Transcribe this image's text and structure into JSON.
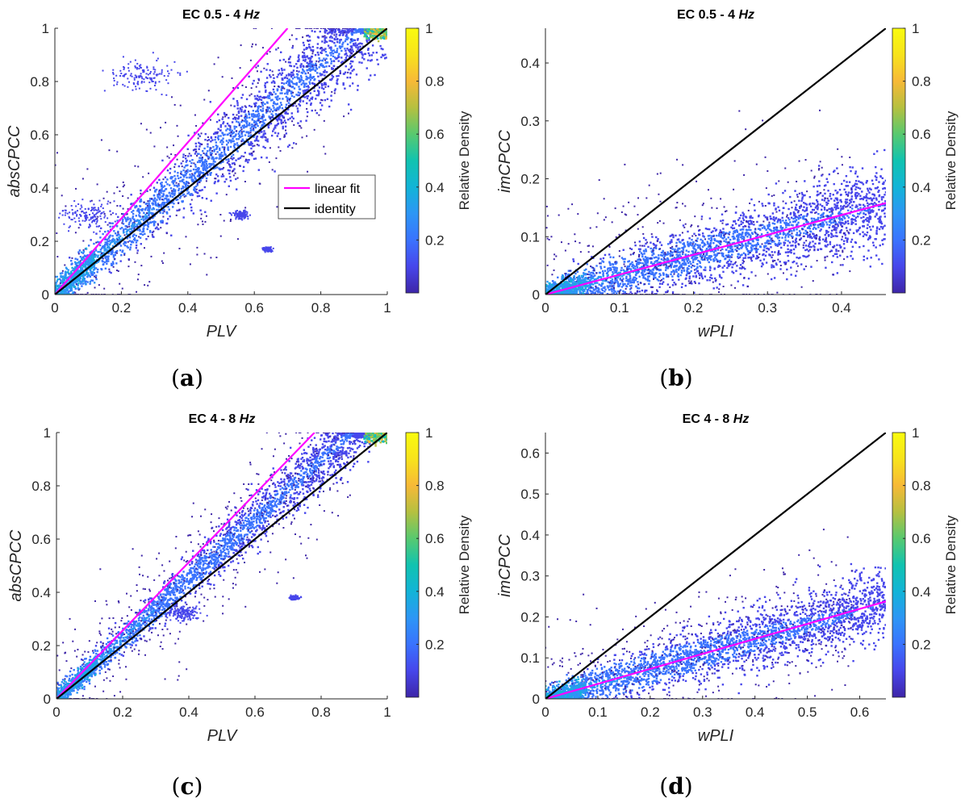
{
  "colors": {
    "linear_fit": "#ff00ff",
    "identity": "#000000",
    "colormap": [
      "#3e26a8",
      "#4746eb",
      "#3a73fe",
      "#2d96f5",
      "#12b4d7",
      "#11c3b0",
      "#58c96f",
      "#b5c040",
      "#f7b937",
      "#f7e31c",
      "#f9fb0e"
    ]
  },
  "colorbar": {
    "label": "Relative Density",
    "ticks": [
      "0.2",
      "0.4",
      "0.6",
      "0.8",
      "1"
    ]
  },
  "legend": {
    "linear_fit": "linear fit",
    "identity": "identity"
  },
  "panels": [
    {
      "caption": "a",
      "title": "EC 0.5 - 4",
      "title_unit": "Hz",
      "xlabel": "PLV",
      "ylabel": "absCPCC",
      "xticks": [
        "0",
        "0.2",
        "0.4",
        "0.6",
        "0.8",
        "1"
      ],
      "yticks": [
        "0",
        "0.2",
        "0.4",
        "0.6",
        "0.8",
        "1"
      ]
    },
    {
      "caption": "b",
      "title": "EC 0.5 - 4",
      "title_unit": "Hz",
      "xlabel": "wPLI",
      "ylabel": "imCPCC",
      "xticks": [
        "0",
        "0.1",
        "0.2",
        "0.3",
        "0.4"
      ],
      "yticks": [
        "0",
        "0.1",
        "0.2",
        "0.3",
        "0.4"
      ]
    },
    {
      "caption": "c",
      "title": "EC 4 - 8",
      "title_unit": "Hz",
      "xlabel": "PLV",
      "ylabel": "absCPCC",
      "xticks": [
        "0",
        "0.2",
        "0.4",
        "0.6",
        "0.8",
        "1"
      ],
      "yticks": [
        "0",
        "0.2",
        "0.4",
        "0.6",
        "0.8",
        "1"
      ]
    },
    {
      "caption": "d",
      "title": "EC 4 - 8",
      "title_unit": "Hz",
      "xlabel": "wPLI",
      "ylabel": "imCPCC",
      "xticks": [
        "0",
        "0.1",
        "0.2",
        "0.3",
        "0.4",
        "0.5",
        "0.6"
      ],
      "yticks": [
        "0",
        "0.1",
        "0.2",
        "0.3",
        "0.4",
        "0.5",
        "0.6"
      ]
    }
  ],
  "chart_data": [
    {
      "type": "scatter",
      "title": "EC 0.5 - 4 Hz",
      "xlabel": "PLV",
      "ylabel": "absCPCC",
      "xlim": [
        0,
        1
      ],
      "ylim": [
        0,
        1
      ],
      "color_scale": "Relative Density",
      "color_range": [
        0,
        1
      ],
      "legend": [
        "linear fit",
        "identity"
      ],
      "legend_position": "center-right",
      "series": [
        {
          "name": "linear fit",
          "kind": "line",
          "x": [
            0,
            0.7
          ],
          "y": [
            0,
            1.0
          ]
        },
        {
          "name": "identity",
          "kind": "line",
          "x": [
            0,
            1
          ],
          "y": [
            0,
            1
          ]
        },
        {
          "kind": "density-scatter",
          "trend_slope": 1.08,
          "spread": 0.06,
          "x_range": [
            0,
            1
          ],
          "clusters": [
            {
              "x": 0.26,
              "y": 0.82,
              "r": 0.08
            },
            {
              "x": 0.1,
              "y": 0.3,
              "r": 0.07
            },
            {
              "x": 0.56,
              "y": 0.3,
              "r": 0.02
            },
            {
              "x": 0.64,
              "y": 0.17,
              "r": 0.01
            }
          ]
        }
      ]
    },
    {
      "type": "scatter",
      "title": "EC 0.5 - 4 Hz",
      "xlabel": "wPLI",
      "ylabel": "imCPCC",
      "xlim": [
        0,
        0.46
      ],
      "ylim": [
        0,
        0.46
      ],
      "color_scale": "Relative Density",
      "color_range": [
        0,
        1
      ],
      "series": [
        {
          "name": "linear fit",
          "kind": "line",
          "x": [
            0,
            0.46
          ],
          "y": [
            0,
            0.158
          ]
        },
        {
          "name": "identity",
          "kind": "line",
          "x": [
            0,
            0.46
          ],
          "y": [
            0,
            0.46
          ]
        },
        {
          "kind": "density-scatter",
          "trend_slope": 0.34,
          "spread": 0.025,
          "x_range": [
            0,
            0.46
          ]
        }
      ]
    },
    {
      "type": "scatter",
      "title": "EC 4 - 8 Hz",
      "xlabel": "PLV",
      "ylabel": "absCPCC",
      "xlim": [
        0,
        1
      ],
      "ylim": [
        0,
        1
      ],
      "color_scale": "Relative Density",
      "color_range": [
        0,
        1
      ],
      "series": [
        {
          "name": "linear fit",
          "kind": "line",
          "x": [
            0,
            0.78
          ],
          "y": [
            0,
            1.0
          ]
        },
        {
          "name": "identity",
          "kind": "line",
          "x": [
            0,
            1
          ],
          "y": [
            0,
            1
          ]
        },
        {
          "kind": "density-scatter",
          "trend_slope": 1.12,
          "spread": 0.04,
          "x_range": [
            0,
            1
          ],
          "clusters": [
            {
              "x": 0.39,
              "y": 0.32,
              "r": 0.04
            },
            {
              "x": 0.72,
              "y": 0.38,
              "r": 0.01
            }
          ]
        }
      ]
    },
    {
      "type": "scatter",
      "title": "EC 4 - 8 Hz",
      "xlabel": "wPLI",
      "ylabel": "imCPCC",
      "xlim": [
        0,
        0.65
      ],
      "ylim": [
        0,
        0.65
      ],
      "color_scale": "Relative Density",
      "color_range": [
        0,
        1
      ],
      "series": [
        {
          "name": "linear fit",
          "kind": "line",
          "x": [
            0,
            0.65
          ],
          "y": [
            0,
            0.238
          ]
        },
        {
          "name": "identity",
          "kind": "line",
          "x": [
            0,
            0.65
          ],
          "y": [
            0,
            0.65
          ]
        },
        {
          "kind": "density-scatter",
          "trend_slope": 0.36,
          "spread": 0.03,
          "x_range": [
            0,
            0.65
          ]
        }
      ]
    }
  ]
}
